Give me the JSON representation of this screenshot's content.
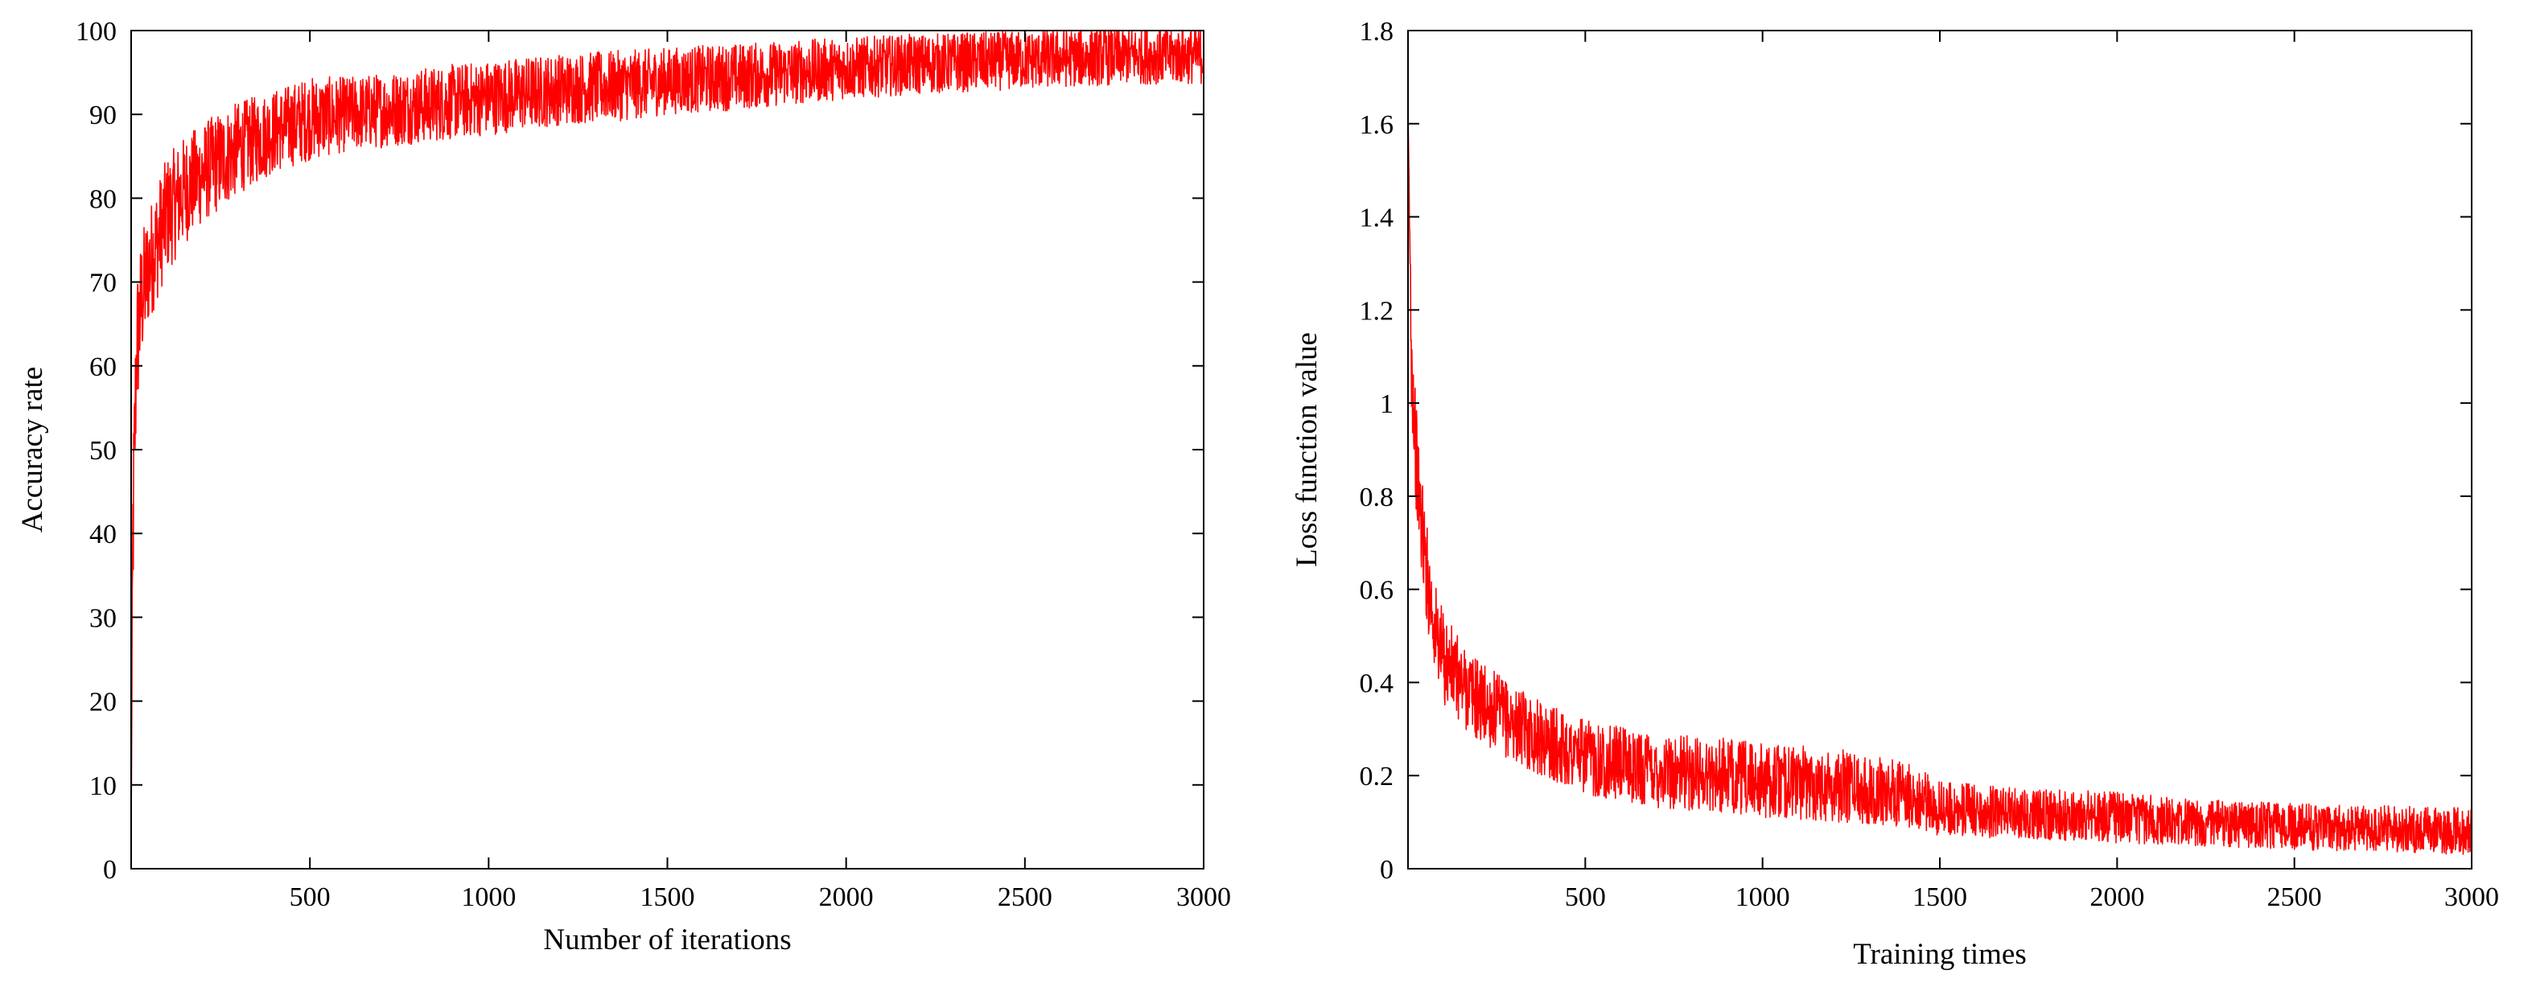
{
  "chart_data": [
    {
      "type": "line",
      "title": "",
      "xlabel": "Number of iterations",
      "ylabel": "Accuracy rate",
      "xlim": [
        0,
        3000
      ],
      "ylim": [
        0,
        100
      ],
      "x_ticks": [
        500,
        1000,
        1500,
        2000,
        2500,
        3000
      ],
      "y_ticks": [
        0,
        10,
        20,
        30,
        40,
        50,
        60,
        70,
        80,
        90,
        100
      ],
      "grid": false,
      "line_color": "#ff0000",
      "series": [
        {
          "x": [
            0,
            5,
            15,
            30,
            50,
            75,
            100,
            150,
            200,
            250,
            300,
            400,
            500,
            600,
            700,
            800,
            1000,
            1200,
            1400,
            1500,
            1700,
            2000,
            2200,
            2500,
            2800,
            3000
          ],
          "y": [
            5,
            40,
            62,
            68,
            72,
            75,
            78,
            81,
            83,
            84.5,
            86,
            88,
            89.5,
            90,
            90.5,
            91,
            92,
            93,
            93.5,
            94,
            94.5,
            95.5,
            96,
            96.5,
            97,
            97
          ],
          "noise_amplitude": [
            3,
            10,
            9,
            8,
            7,
            7,
            7,
            6.5,
            6,
            6,
            5.5,
            5,
            5,
            4.5,
            4.5,
            4.5,
            4.5,
            4.3,
            4.2,
            4,
            4,
            3.7,
            3.6,
            3.5,
            3.4,
            3.4
          ]
        }
      ]
    },
    {
      "type": "line",
      "title": "",
      "xlabel": "Training times",
      "ylabel": "Loss function value",
      "xlim": [
        0,
        3000
      ],
      "ylim": [
        0,
        1.8
      ],
      "x_ticks": [
        500,
        1000,
        1500,
        2000,
        2500,
        3000
      ],
      "y_ticks": [
        0,
        0.2,
        0.4,
        0.6,
        0.8,
        1,
        1.2,
        1.4,
        1.6,
        1.8
      ],
      "grid": false,
      "line_color": "#ff0000",
      "series": [
        {
          "x": [
            0,
            10,
            25,
            50,
            75,
            100,
            150,
            200,
            300,
            400,
            500,
            700,
            900,
            1000,
            1200,
            1400,
            1500,
            1700,
            2000,
            2200,
            2500,
            2800,
            3000
          ],
          "y": [
            1.6,
            1.1,
            0.85,
            0.65,
            0.52,
            0.45,
            0.4,
            0.36,
            0.31,
            0.27,
            0.24,
            0.21,
            0.2,
            0.19,
            0.18,
            0.16,
            0.13,
            0.12,
            0.11,
            0.1,
            0.09,
            0.085,
            0.08
          ],
          "noise_amplitude": [
            0.04,
            0.12,
            0.12,
            0.11,
            0.1,
            0.1,
            0.09,
            0.09,
            0.08,
            0.08,
            0.08,
            0.08,
            0.08,
            0.08,
            0.08,
            0.07,
            0.06,
            0.055,
            0.055,
            0.05,
            0.05,
            0.05,
            0.05
          ]
        }
      ]
    }
  ]
}
